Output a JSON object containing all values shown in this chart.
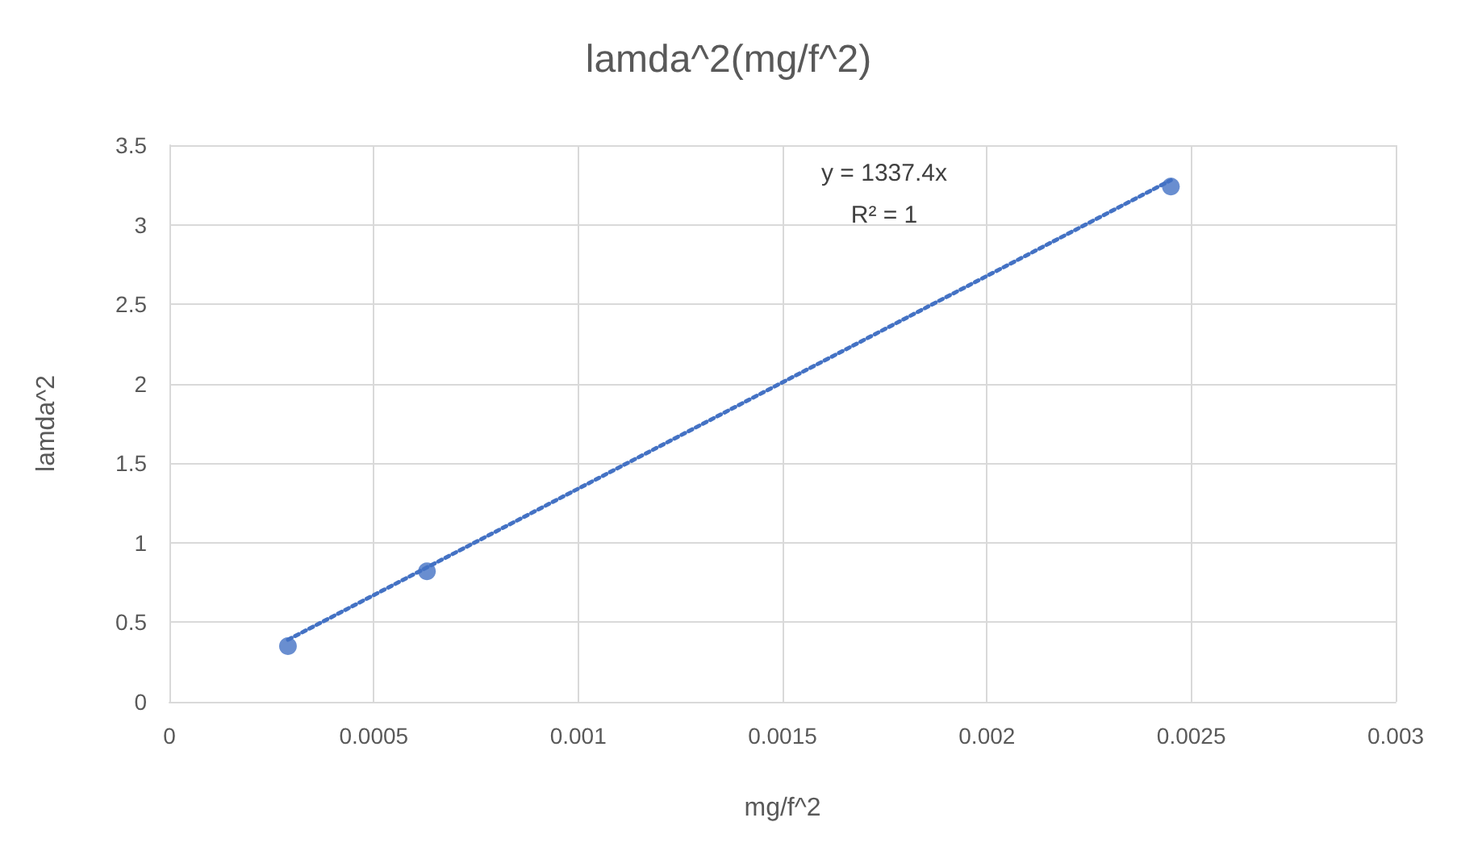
{
  "chart_data": {
    "type": "scatter",
    "title": "lamda^2(mg/f^2)",
    "xlabel": "mg/f^2",
    "ylabel": "lamda^2",
    "x": [
      0.00029,
      0.00063,
      0.00245
    ],
    "series": [
      {
        "color": "#4472c4",
        "values": [
          0.35,
          0.82,
          3.24
        ],
        "marker": "circle"
      },
      {
        "type": "line",
        "color": "#4472c4",
        "x": [
          0.00029,
          0.00245
        ],
        "values": [
          0.39,
          3.28
        ],
        "marker": "none",
        "line_style": "dotted"
      }
    ],
    "annotations": [
      "y = 1337.4x",
      "R² = 1"
    ],
    "xlim": [
      0,
      0.003
    ],
    "xticks": [
      0,
      0.0005,
      0.001,
      0.0015,
      0.002,
      0.0025,
      0.003
    ],
    "ylim": [
      0,
      3.5
    ],
    "yticks": [
      0,
      0.5,
      1,
      1.5,
      2,
      2.5,
      3,
      3.5
    ],
    "grid": true
  }
}
